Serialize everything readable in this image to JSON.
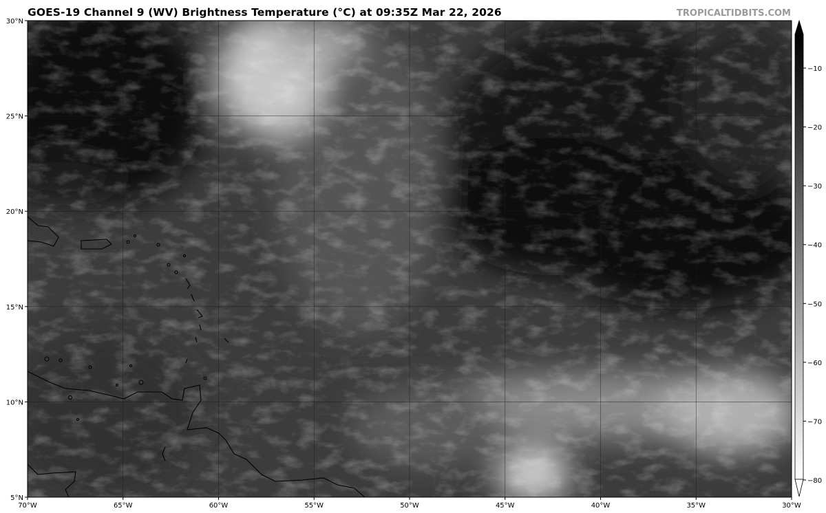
{
  "title": "GOES-19 Channel 9 (WV) Brightness Temperature (°C) at 09:35Z Mar 22, 2026",
  "credit": "TROPICALTIDBITS.COM",
  "map": {
    "lon_range": [
      -70,
      -30
    ],
    "lat_range": [
      5,
      30
    ],
    "lat_labels": [
      {
        "value": 30,
        "label": "30°N"
      },
      {
        "value": 25,
        "label": "25°N"
      },
      {
        "value": 20,
        "label": "20°N"
      },
      {
        "value": 15,
        "label": "15°N"
      },
      {
        "value": 10,
        "label": "10°N"
      },
      {
        "value": 5,
        "label": "5°N"
      }
    ],
    "lon_labels": [
      {
        "value": -70,
        "label": "70°W"
      },
      {
        "value": -65,
        "label": "65°W"
      },
      {
        "value": -60,
        "label": "60°W"
      },
      {
        "value": -55,
        "label": "55°W"
      },
      {
        "value": -50,
        "label": "50°W"
      },
      {
        "value": -45,
        "label": "45°W"
      },
      {
        "value": -40,
        "label": "40°W"
      },
      {
        "value": -35,
        "label": "35°W"
      },
      {
        "value": -30,
        "label": "30°W"
      }
    ],
    "gridlines": true,
    "colors": {
      "coastline": "#000000",
      "grid": "#1a1a1a"
    }
  },
  "colorbar": {
    "range": [
      -80,
      -5
    ],
    "colormap": "grayscale (warm = black, cold = white)",
    "extend": "both",
    "ticks": [
      {
        "value": -10,
        "label": "−10"
      },
      {
        "value": -20,
        "label": "−20"
      },
      {
        "value": -30,
        "label": "−30"
      },
      {
        "value": -40,
        "label": "−40"
      },
      {
        "value": -50,
        "label": "−50"
      },
      {
        "value": -60,
        "label": "−60"
      },
      {
        "value": -70,
        "label": "−70"
      },
      {
        "value": -80,
        "label": "−80"
      }
    ]
  }
}
